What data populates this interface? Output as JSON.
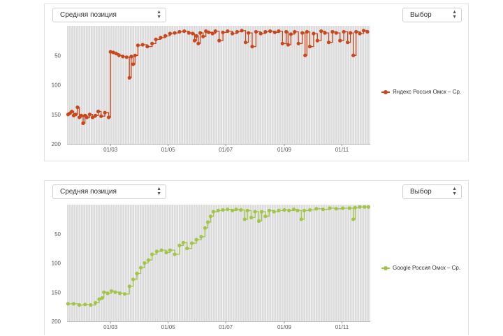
{
  "charts": [
    {
      "metric_select": {
        "value": "Средняя позиция"
      },
      "choice_select": {
        "value": "Выбор"
      },
      "legend": {
        "label": "Яндекс Россия Омск – Ср."
      },
      "color": "#c8471c"
    },
    {
      "metric_select": {
        "value": "Средняя позиция"
      },
      "choice_select": {
        "value": "Выбор"
      },
      "legend": {
        "label": "Google Россия Омск – Ср."
      },
      "color": "#a2c548"
    }
  ],
  "chart_data": [
    {
      "type": "line",
      "title": "",
      "xlabel": "",
      "ylabel": "",
      "y_inverted": true,
      "ylim": [
        0,
        200
      ],
      "xlim": [
        "2024-01-15",
        "2024-12-01"
      ],
      "yticks": [
        50,
        100,
        150,
        200
      ],
      "xticks": [
        {
          "label": "01/03",
          "date": "2024-03-01"
        },
        {
          "label": "01/05",
          "date": "2024-05-01"
        },
        {
          "label": "01/07",
          "date": "2024-07-01"
        },
        {
          "label": "01/09",
          "date": "2024-09-01"
        },
        {
          "label": "01/11",
          "date": "2024-11-01"
        }
      ],
      "grid": true,
      "series": [
        {
          "name": "Яндекс Россия Омск – Ср.",
          "color": "#c8471c",
          "points": [
            [
              "2024-01-16",
              150
            ],
            [
              "2024-01-18",
              148
            ],
            [
              "2024-01-20",
              145
            ],
            [
              "2024-01-22",
              152
            ],
            [
              "2024-01-24",
              150
            ],
            [
              "2024-01-26",
              138
            ],
            [
              "2024-01-28",
              155
            ],
            [
              "2024-01-30",
              152
            ],
            [
              "2024-02-01",
              165
            ],
            [
              "2024-02-03",
              152
            ],
            [
              "2024-02-05",
              155
            ],
            [
              "2024-02-08",
              150
            ],
            [
              "2024-02-11",
              155
            ],
            [
              "2024-02-14",
              152
            ],
            [
              "2024-02-17",
              145
            ],
            [
              "2024-02-20",
              153
            ],
            [
              "2024-02-24",
              147
            ],
            [
              "2024-02-28",
              155
            ],
            [
              "2024-03-01",
              44
            ],
            [
              "2024-03-04",
              45
            ],
            [
              "2024-03-07",
              47
            ],
            [
              "2024-03-10",
              50
            ],
            [
              "2024-03-14",
              52
            ],
            [
              "2024-03-18",
              53
            ],
            [
              "2024-03-21",
              88
            ],
            [
              "2024-03-23",
              52
            ],
            [
              "2024-03-25",
              65
            ],
            [
              "2024-03-27",
              50
            ],
            [
              "2024-03-30",
              33
            ],
            [
              "2024-04-04",
              32
            ],
            [
              "2024-04-09",
              35
            ],
            [
              "2024-04-14",
              30
            ],
            [
              "2024-04-18",
              23
            ],
            [
              "2024-04-23",
              20
            ],
            [
              "2024-04-28",
              17
            ],
            [
              "2024-05-03",
              13
            ],
            [
              "2024-05-08",
              12
            ],
            [
              "2024-05-13",
              10
            ],
            [
              "2024-05-18",
              9
            ],
            [
              "2024-05-23",
              12
            ],
            [
              "2024-05-27",
              13
            ],
            [
              "2024-05-29",
              25
            ],
            [
              "2024-05-31",
              17
            ],
            [
              "2024-06-02",
              30
            ],
            [
              "2024-06-04",
              12
            ],
            [
              "2024-06-07",
              18
            ],
            [
              "2024-06-10",
              9
            ],
            [
              "2024-06-13",
              11
            ],
            [
              "2024-06-17",
              13
            ],
            [
              "2024-06-20",
              9
            ],
            [
              "2024-06-24",
              25
            ],
            [
              "2024-06-28",
              11
            ],
            [
              "2024-07-03",
              9
            ],
            [
              "2024-07-08",
              13
            ],
            [
              "2024-07-13",
              10
            ],
            [
              "2024-07-18",
              8
            ],
            [
              "2024-07-22",
              28
            ],
            [
              "2024-07-25",
              12
            ],
            [
              "2024-07-29",
              35
            ],
            [
              "2024-08-02",
              10
            ],
            [
              "2024-08-07",
              13
            ],
            [
              "2024-08-12",
              10
            ],
            [
              "2024-08-17",
              9
            ],
            [
              "2024-08-22",
              11
            ],
            [
              "2024-08-26",
              9
            ],
            [
              "2024-08-30",
              30
            ],
            [
              "2024-09-03",
              10
            ],
            [
              "2024-09-05",
              32
            ],
            [
              "2024-09-08",
              14
            ],
            [
              "2024-09-12",
              10
            ],
            [
              "2024-09-16",
              30
            ],
            [
              "2024-09-20",
              12
            ],
            [
              "2024-09-23",
              50
            ],
            [
              "2024-09-25",
              10
            ],
            [
              "2024-09-28",
              35
            ],
            [
              "2024-10-02",
              13
            ],
            [
              "2024-10-06",
              25
            ],
            [
              "2024-10-10",
              9
            ],
            [
              "2024-10-14",
              12
            ],
            [
              "2024-10-18",
              28
            ],
            [
              "2024-10-22",
              10
            ],
            [
              "2024-10-26",
              12
            ],
            [
              "2024-10-30",
              25
            ],
            [
              "2024-11-03",
              10
            ],
            [
              "2024-11-07",
              28
            ],
            [
              "2024-11-10",
              12
            ],
            [
              "2024-11-13",
              50
            ],
            [
              "2024-11-16",
              10
            ],
            [
              "2024-11-20",
              13
            ],
            [
              "2024-11-24",
              8
            ],
            [
              "2024-11-28",
              10
            ]
          ]
        }
      ]
    },
    {
      "type": "line",
      "title": "",
      "xlabel": "",
      "ylabel": "",
      "y_inverted": true,
      "ylim": [
        0,
        200
      ],
      "xlim": [
        "2024-01-15",
        "2024-12-01"
      ],
      "yticks": [
        50,
        100,
        150,
        200
      ],
      "xticks": [
        {
          "label": "01/03",
          "date": "2024-03-01"
        },
        {
          "label": "01/05",
          "date": "2024-05-01"
        },
        {
          "label": "01/07",
          "date": "2024-07-01"
        },
        {
          "label": "01/09",
          "date": "2024-09-01"
        },
        {
          "label": "01/11",
          "date": "2024-11-01"
        }
      ],
      "grid": true,
      "series": [
        {
          "name": "Google Россия Омск – Ср.",
          "color": "#a2c548",
          "points": [
            [
              "2024-01-16",
              170
            ],
            [
              "2024-01-22",
              170
            ],
            [
              "2024-01-28",
              172
            ],
            [
              "2024-02-03",
              171
            ],
            [
              "2024-02-09",
              172
            ],
            [
              "2024-02-14",
              168
            ],
            [
              "2024-02-18",
              162
            ],
            [
              "2024-02-21",
              160
            ],
            [
              "2024-02-23",
              150
            ],
            [
              "2024-02-27",
              152
            ],
            [
              "2024-03-02",
              148
            ],
            [
              "2024-03-06",
              150
            ],
            [
              "2024-03-11",
              152
            ],
            [
              "2024-03-16",
              153
            ],
            [
              "2024-03-21",
              140
            ],
            [
              "2024-03-25",
              128
            ],
            [
              "2024-03-29",
              118
            ],
            [
              "2024-04-02",
              108
            ],
            [
              "2024-04-06",
              100
            ],
            [
              "2024-04-10",
              95
            ],
            [
              "2024-04-14",
              85
            ],
            [
              "2024-04-19",
              80
            ],
            [
              "2024-04-24",
              78
            ],
            [
              "2024-04-29",
              82
            ],
            [
              "2024-05-03",
              78
            ],
            [
              "2024-05-08",
              85
            ],
            [
              "2024-05-13",
              70
            ],
            [
              "2024-05-17",
              65
            ],
            [
              "2024-05-21",
              75
            ],
            [
              "2024-05-26",
              66
            ],
            [
              "2024-05-31",
              60
            ],
            [
              "2024-06-05",
              55
            ],
            [
              "2024-06-09",
              40
            ],
            [
              "2024-06-12",
              30
            ],
            [
              "2024-06-15",
              20
            ],
            [
              "2024-06-18",
              12
            ],
            [
              "2024-06-23",
              10
            ],
            [
              "2024-06-28",
              9
            ],
            [
              "2024-07-03",
              8
            ],
            [
              "2024-07-08",
              10
            ],
            [
              "2024-07-12",
              8
            ],
            [
              "2024-07-17",
              9
            ],
            [
              "2024-07-21",
              25
            ],
            [
              "2024-07-24",
              10
            ],
            [
              "2024-07-28",
              22
            ],
            [
              "2024-08-01",
              12
            ],
            [
              "2024-08-05",
              28
            ],
            [
              "2024-08-08",
              12
            ],
            [
              "2024-08-12",
              20
            ],
            [
              "2024-08-16",
              10
            ],
            [
              "2024-08-21",
              12
            ],
            [
              "2024-08-26",
              10
            ],
            [
              "2024-09-01",
              9
            ],
            [
              "2024-09-06",
              10
            ],
            [
              "2024-09-11",
              8
            ],
            [
              "2024-09-15",
              10
            ],
            [
              "2024-09-19",
              25
            ],
            [
              "2024-09-22",
              10
            ],
            [
              "2024-09-28",
              9
            ],
            [
              "2024-10-05",
              7
            ],
            [
              "2024-10-12",
              8
            ],
            [
              "2024-10-19",
              6
            ],
            [
              "2024-10-26",
              7
            ],
            [
              "2024-11-02",
              6
            ],
            [
              "2024-11-09",
              6
            ],
            [
              "2024-11-13",
              25
            ],
            [
              "2024-11-15",
              5
            ],
            [
              "2024-11-20",
              4
            ],
            [
              "2024-11-25",
              4
            ],
            [
              "2024-11-29",
              4
            ]
          ]
        }
      ]
    }
  ]
}
